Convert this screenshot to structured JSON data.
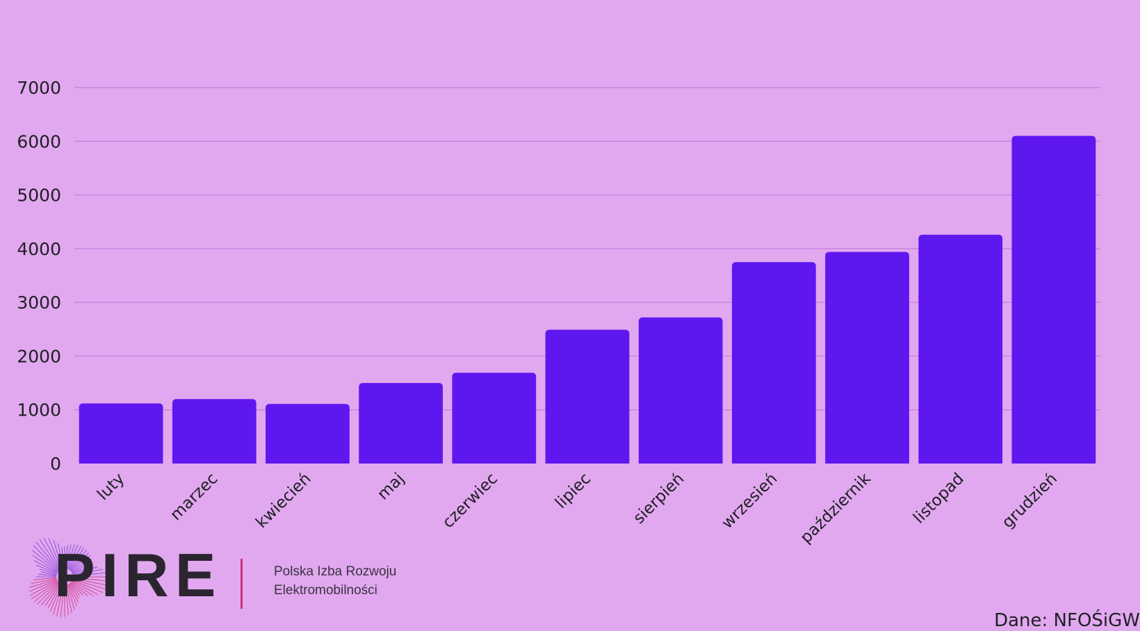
{
  "chart_data": {
    "type": "bar",
    "categories": [
      "luty",
      "marzec",
      "kwiecień",
      "maj",
      "czerwiec",
      "lipiec",
      "sierpień",
      "wrzesień",
      "październik",
      "listopad",
      "grudzień"
    ],
    "values": [
      1120,
      1200,
      1110,
      1500,
      1690,
      2490,
      2720,
      3750,
      3940,
      4260,
      6100
    ],
    "ylim": [
      0,
      7000
    ],
    "yticks": [
      0,
      1000,
      2000,
      3000,
      4000,
      5000,
      6000,
      7000
    ],
    "grid": true,
    "bar_color": "#5f17f0",
    "grid_color": "#c27ed8"
  },
  "logo": {
    "text": "PIRE",
    "icon": "radial-burst-logo-icon"
  },
  "org": {
    "line1": "Polska Izba Rozwoju",
    "line2": "Elektromobilności"
  },
  "source": "Dane: NFOŚiGW"
}
